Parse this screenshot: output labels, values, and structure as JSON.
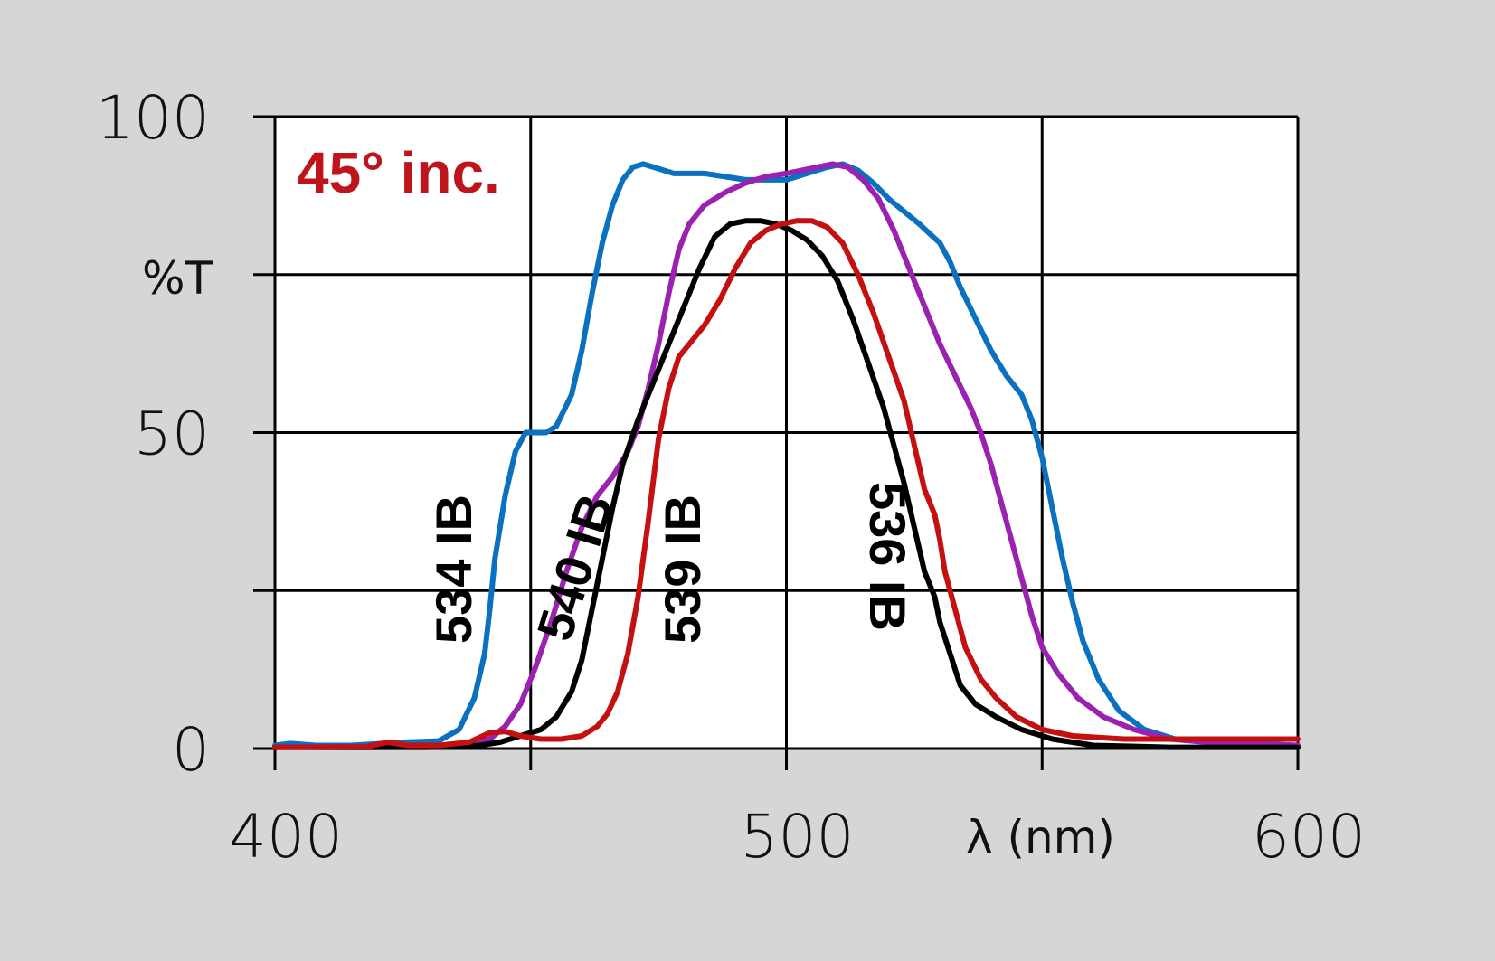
{
  "chart_data": {
    "type": "line",
    "annotation": "45° inc.",
    "annotation_color": "#c0141c",
    "xlabel": "λ (nm)",
    "ylabel": "%T",
    "xlim": [
      400,
      600
    ],
    "ylim": [
      0,
      100
    ],
    "x_ticks": [
      400,
      500,
      600
    ],
    "y_ticks": [
      0,
      50,
      100
    ],
    "x_tick_labels": [
      "400",
      "500",
      "600"
    ],
    "y_tick_labels": [
      "0",
      "50",
      "100"
    ],
    "x_grid": [
      400,
      450,
      500,
      550,
      600
    ],
    "y_grid": [
      0,
      25,
      50,
      75,
      100
    ],
    "grid": true,
    "series": [
      {
        "name": "534 IB",
        "color": "#0a70c0",
        "points": [
          [
            400,
            0.5
          ],
          [
            403,
            0.8
          ],
          [
            408,
            0.5
          ],
          [
            415,
            0.5
          ],
          [
            425,
            1
          ],
          [
            432,
            1.2
          ],
          [
            436,
            3
          ],
          [
            439,
            8
          ],
          [
            441,
            15
          ],
          [
            442,
            22
          ],
          [
            443,
            30
          ],
          [
            445,
            40
          ],
          [
            447,
            47
          ],
          [
            449,
            50
          ],
          [
            453,
            50
          ],
          [
            455,
            51
          ],
          [
            458,
            56
          ],
          [
            460,
            63
          ],
          [
            462,
            72
          ],
          [
            464,
            80
          ],
          [
            466,
            86
          ],
          [
            468,
            90
          ],
          [
            470,
            92
          ],
          [
            472,
            92.5
          ],
          [
            474,
            92
          ],
          [
            476,
            91.5
          ],
          [
            478,
            91
          ],
          [
            484,
            91
          ],
          [
            488,
            90.5
          ],
          [
            492,
            90
          ],
          [
            496,
            90
          ],
          [
            500,
            90
          ],
          [
            504,
            91
          ],
          [
            508,
            92
          ],
          [
            511,
            92.5
          ],
          [
            514,
            91.5
          ],
          [
            517,
            89.5
          ],
          [
            520,
            87
          ],
          [
            523,
            85
          ],
          [
            526,
            83
          ],
          [
            528,
            81.5
          ],
          [
            530,
            80
          ],
          [
            532,
            77
          ],
          [
            534,
            73
          ],
          [
            537,
            68
          ],
          [
            540,
            63
          ],
          [
            543,
            59
          ],
          [
            546,
            56
          ],
          [
            548,
            52
          ],
          [
            550,
            46
          ],
          [
            552,
            38
          ],
          [
            554,
            30
          ],
          [
            556,
            23
          ],
          [
            558,
            17
          ],
          [
            561,
            11
          ],
          [
            565,
            6
          ],
          [
            570,
            3
          ],
          [
            576,
            1.5
          ],
          [
            585,
            1
          ],
          [
            600,
            0.5
          ]
        ]
      },
      {
        "name": "540 IB",
        "color": "#9b22b0",
        "points": [
          [
            400,
            0.2
          ],
          [
            420,
            0.2
          ],
          [
            432,
            0.3
          ],
          [
            438,
            0.6
          ],
          [
            442,
            1.5
          ],
          [
            445,
            3.5
          ],
          [
            448,
            7
          ],
          [
            451,
            13
          ],
          [
            454,
            20
          ],
          [
            457,
            28
          ],
          [
            460,
            35
          ],
          [
            463,
            40
          ],
          [
            466,
            43
          ],
          [
            469,
            47
          ],
          [
            471,
            51
          ],
          [
            473,
            57
          ],
          [
            475,
            64
          ],
          [
            477,
            72
          ],
          [
            479,
            79
          ],
          [
            481,
            83
          ],
          [
            484,
            86
          ],
          [
            488,
            88
          ],
          [
            492,
            89.5
          ],
          [
            496,
            90.5
          ],
          [
            500,
            91
          ],
          [
            503,
            91.5
          ],
          [
            506,
            92
          ],
          [
            509,
            92.5
          ],
          [
            512,
            92
          ],
          [
            515,
            90
          ],
          [
            518,
            87
          ],
          [
            521,
            82
          ],
          [
            524,
            76
          ],
          [
            527,
            70
          ],
          [
            530,
            64
          ],
          [
            533,
            59
          ],
          [
            536,
            54
          ],
          [
            538,
            50
          ],
          [
            540,
            45
          ],
          [
            542,
            39
          ],
          [
            544,
            33
          ],
          [
            546,
            27
          ],
          [
            548,
            21
          ],
          [
            550,
            16
          ],
          [
            553,
            12
          ],
          [
            557,
            8
          ],
          [
            562,
            5
          ],
          [
            568,
            3
          ],
          [
            575,
            1.5
          ],
          [
            585,
            0.8
          ],
          [
            600,
            0.5
          ]
        ]
      },
      {
        "name": "536 IB",
        "color": "#000000",
        "points": [
          [
            400,
            0.2
          ],
          [
            430,
            0.2
          ],
          [
            440,
            0.5
          ],
          [
            444,
            1
          ],
          [
            448,
            2
          ],
          [
            452,
            3
          ],
          [
            455,
            5
          ],
          [
            458,
            9
          ],
          [
            460,
            14
          ],
          [
            462,
            22
          ],
          [
            464,
            30
          ],
          [
            466,
            38
          ],
          [
            468,
            45
          ],
          [
            471,
            52
          ],
          [
            474,
            58
          ],
          [
            477,
            64
          ],
          [
            480,
            70
          ],
          [
            483,
            76
          ],
          [
            486,
            81
          ],
          [
            489,
            83
          ],
          [
            492,
            83.5
          ],
          [
            495,
            83.5
          ],
          [
            498,
            83
          ],
          [
            501,
            82
          ],
          [
            504,
            80.5
          ],
          [
            507,
            78
          ],
          [
            510,
            74
          ],
          [
            513,
            68
          ],
          [
            516,
            61
          ],
          [
            519,
            54
          ],
          [
            521,
            48
          ],
          [
            523,
            42
          ],
          [
            525,
            35
          ],
          [
            527,
            28
          ],
          [
            529,
            24
          ],
          [
            530,
            20
          ],
          [
            532,
            15
          ],
          [
            534,
            10
          ],
          [
            537,
            7
          ],
          [
            541,
            5
          ],
          [
            546,
            3
          ],
          [
            552,
            1.5
          ],
          [
            560,
            0.5
          ],
          [
            575,
            0.2
          ],
          [
            600,
            0.2
          ]
        ]
      },
      {
        "name": "539 IB",
        "color": "#c41010",
        "points": [
          [
            400,
            0.2
          ],
          [
            418,
            0.3
          ],
          [
            422,
            1
          ],
          [
            426,
            0.5
          ],
          [
            432,
            0.5
          ],
          [
            438,
            1
          ],
          [
            442,
            2.5
          ],
          [
            445,
            2.7
          ],
          [
            448,
            2
          ],
          [
            452,
            1.5
          ],
          [
            456,
            1.5
          ],
          [
            460,
            2
          ],
          [
            463,
            3.5
          ],
          [
            465,
            5.5
          ],
          [
            467,
            9
          ],
          [
            469,
            15
          ],
          [
            471,
            24
          ],
          [
            473,
            36
          ],
          [
            475,
            49
          ],
          [
            477,
            57
          ],
          [
            479,
            62
          ],
          [
            481,
            64
          ],
          [
            484,
            67
          ],
          [
            487,
            71
          ],
          [
            490,
            76
          ],
          [
            493,
            80
          ],
          [
            496,
            82
          ],
          [
            499,
            83
          ],
          [
            502,
            83.5
          ],
          [
            505,
            83.5
          ],
          [
            508,
            82.5
          ],
          [
            511,
            80
          ],
          [
            514,
            75
          ],
          [
            517,
            69
          ],
          [
            520,
            62
          ],
          [
            523,
            55
          ],
          [
            525,
            48
          ],
          [
            527,
            41
          ],
          [
            529,
            37
          ],
          [
            530,
            33
          ],
          [
            531,
            28
          ],
          [
            533,
            22
          ],
          [
            535,
            16
          ],
          [
            538,
            11
          ],
          [
            541,
            8
          ],
          [
            545,
            5
          ],
          [
            550,
            3
          ],
          [
            556,
            2
          ],
          [
            566,
            1.5
          ],
          [
            580,
            1.5
          ],
          [
            600,
            1.5
          ]
        ]
      }
    ],
    "series_labels": [
      "534 IB",
      "540 IB",
      "539 IB",
      "536 IB"
    ]
  }
}
